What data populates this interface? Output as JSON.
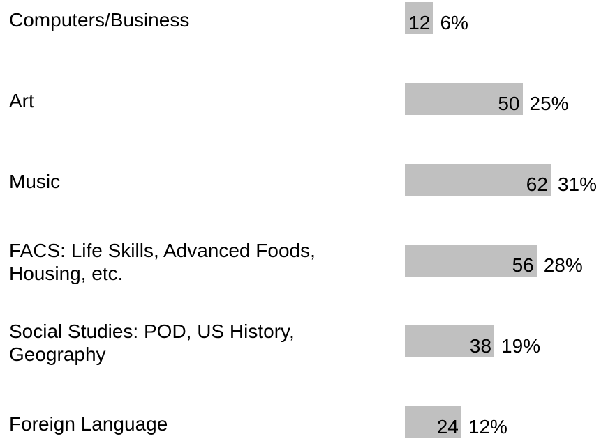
{
  "chart_data": {
    "type": "bar",
    "categories": [
      "Computers/Business",
      "Art",
      "Music",
      "FACS: Life Skills, Advanced Foods, Housing, etc.",
      "Social Studies: POD, US History, Geography",
      "Foreign Language"
    ],
    "values": [
      12,
      50,
      62,
      56,
      38,
      24
    ],
    "percent_labels": [
      "6%",
      "25%",
      "31%",
      "28%",
      "19%",
      "12%"
    ],
    "color": "#c0c0c0"
  }
}
